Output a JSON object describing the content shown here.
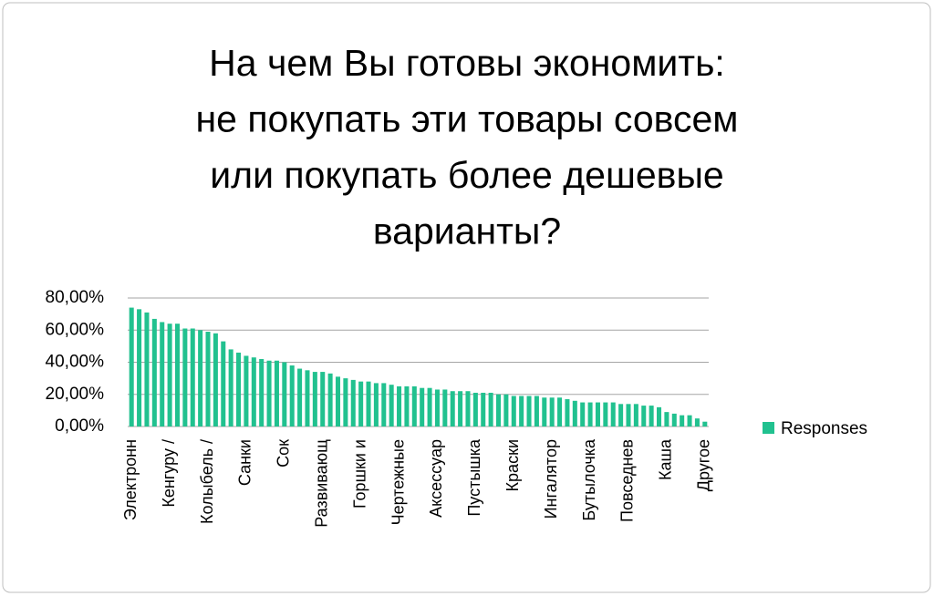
{
  "chart_data": {
    "type": "bar",
    "title": [
      "На чем Вы готовы экономить:",
      "не покупать эти товары совсем",
      "или покупать более дешевые",
      "варианты?"
    ],
    "categories": [
      "Электронн",
      null,
      null,
      null,
      null,
      "Кенгуру /",
      null,
      null,
      null,
      null,
      "Колыбель /",
      null,
      null,
      null,
      null,
      "Санки",
      null,
      null,
      null,
      null,
      "Сок",
      null,
      null,
      null,
      null,
      "Развивающ",
      null,
      null,
      null,
      null,
      "Горшки и",
      null,
      null,
      null,
      null,
      "Чертежные",
      null,
      null,
      null,
      null,
      "Аксессуар",
      null,
      null,
      null,
      null,
      "Пустышка",
      null,
      null,
      null,
      null,
      "Краски",
      null,
      null,
      null,
      null,
      "Ингалятор",
      null,
      null,
      null,
      null,
      "Бутылочка",
      null,
      null,
      null,
      null,
      "Повседнев",
      null,
      null,
      null,
      null,
      "Каша",
      null,
      null,
      null,
      null,
      "Другое"
    ],
    "series": [
      {
        "name": "Responses",
        "color": "#21c18f",
        "values": [
          74,
          73,
          71,
          67,
          65,
          64,
          64,
          61,
          61,
          60,
          59,
          58,
          53,
          48,
          46,
          44,
          43,
          42,
          41,
          41,
          40,
          38,
          36,
          35,
          34,
          34,
          33,
          31,
          30,
          29,
          28,
          28,
          27,
          27,
          26,
          25,
          25,
          25,
          24,
          24,
          23,
          23,
          22,
          22,
          22,
          21,
          21,
          21,
          20,
          20,
          19,
          19,
          19,
          19,
          18,
          18,
          18,
          17,
          16,
          15,
          15,
          15,
          15,
          15,
          14,
          14,
          14,
          13,
          13,
          12,
          9,
          8,
          7,
          7,
          5,
          3
        ]
      }
    ],
    "ylim": [
      0,
      80
    ],
    "yticks": [
      {
        "value": 0,
        "label": "0,00%"
      },
      {
        "value": 20,
        "label": "20,00%"
      },
      {
        "value": 40,
        "label": "40,00%"
      },
      {
        "value": 60,
        "label": "60,00%"
      },
      {
        "value": 80,
        "label": "80,00%"
      }
    ],
    "grid": true,
    "legend": "right"
  }
}
